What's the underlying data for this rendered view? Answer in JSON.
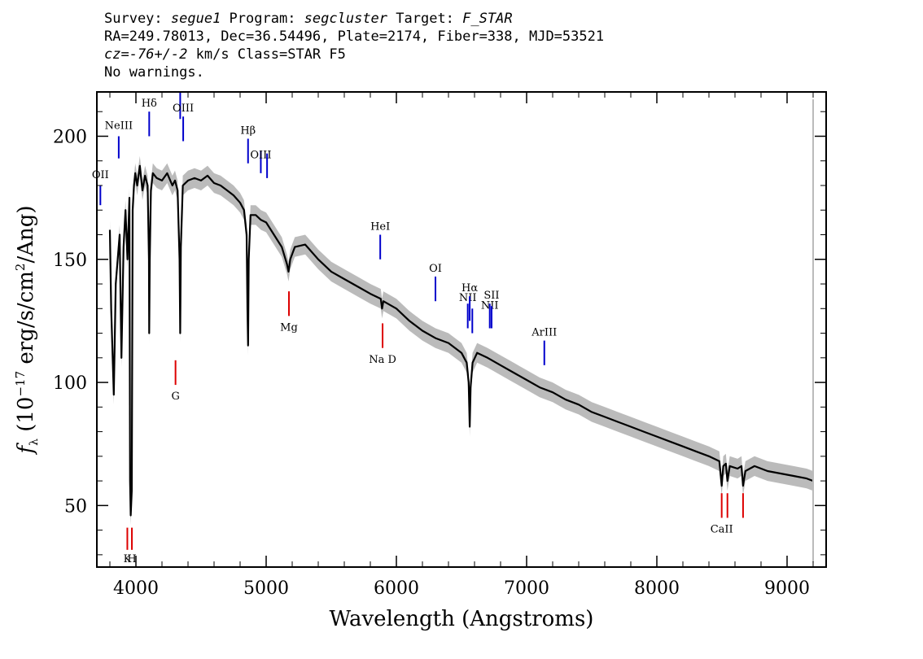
{
  "header": {
    "line1": {
      "survey_label": "Survey: ",
      "survey": "segue1",
      "program_label": " Program: ",
      "program": "segcluster",
      "target_label": " Target: ",
      "target": "F_STAR"
    },
    "line2": "RA=249.78013, Dec=36.54496, Plate=2174, Fiber=338, MJD=53521",
    "line3": {
      "cz": "cz",
      "eq": "=",
      "velocity": "-76+/-2",
      "rest": " km/s Class=STAR F5"
    },
    "line4": "No warnings."
  },
  "chart_data": {
    "type": "line",
    "xlabel": "Wavelength (Angstroms)",
    "ylabel": "f_λ (10^-17 erg/s/cm^2/Ang)",
    "ylabel_parts": {
      "f": "f",
      "lambda": "λ",
      "units_pre": " (10",
      "exp1": "−17",
      "units_mid": " erg/s/cm",
      "exp2": "2",
      "units_post": "/Ang)"
    },
    "xlim": [
      3700,
      9300
    ],
    "ylim": [
      25,
      218
    ],
    "x_ticks": [
      4000,
      5000,
      6000,
      7000,
      8000,
      9000
    ],
    "y_ticks": [
      50,
      100,
      150,
      200
    ],
    "series": [
      {
        "color": "#000000",
        "error_color": "#bbbbbb",
        "x": [
          3800,
          3810,
          3830,
          3845,
          3860,
          3875,
          3889,
          3905,
          3920,
          3935,
          3950,
          3955,
          3960,
          3968,
          3975,
          3985,
          3995,
          4010,
          4030,
          4050,
          4070,
          4090,
          4100,
          4102,
          4106,
          4115,
          4130,
          4160,
          4200,
          4240,
          4280,
          4300,
          4320,
          4335,
          4340,
          4345,
          4360,
          4400,
          4450,
          4500,
          4550,
          4600,
          4650,
          4700,
          4750,
          4800,
          4830,
          4850,
          4856,
          4861,
          4866,
          4880,
          4920,
          4960,
          5000,
          5060,
          5120,
          5160,
          5172,
          5185,
          5220,
          5300,
          5400,
          5500,
          5600,
          5700,
          5800,
          5880,
          5890,
          5900,
          6000,
          6100,
          6200,
          6300,
          6400,
          6500,
          6540,
          6555,
          6563,
          6570,
          6585,
          6620,
          6700,
          6800,
          6900,
          7000,
          7100,
          7200,
          7300,
          7400,
          7500,
          7600,
          7700,
          7800,
          7900,
          8000,
          8100,
          8200,
          8300,
          8400,
          8480,
          8498,
          8510,
          8530,
          8542,
          8560,
          8620,
          8650,
          8662,
          8680,
          8750,
          8850,
          8950,
          9050,
          9150,
          9200
        ],
        "y": [
          162,
          130,
          95,
          140,
          150,
          160,
          110,
          155,
          170,
          150,
          175,
          60,
          46,
          56,
          170,
          180,
          185,
          180,
          188,
          178,
          184,
          180,
          150,
          120,
          150,
          178,
          185,
          183,
          182,
          185,
          180,
          182,
          178,
          150,
          120,
          155,
          180,
          182,
          183,
          182,
          184,
          181,
          180,
          178,
          176,
          173,
          170,
          160,
          130,
          115,
          150,
          168,
          168,
          166,
          165,
          160,
          155,
          148,
          145,
          150,
          155,
          156,
          150,
          145,
          142,
          139,
          136,
          134,
          130,
          133,
          130,
          125,
          121,
          118,
          116,
          112,
          108,
          100,
          82,
          98,
          108,
          112,
          110,
          107,
          104,
          101,
          98,
          96,
          93,
          91,
          88,
          86,
          84,
          82,
          80,
          78,
          76,
          74,
          72,
          70,
          68,
          58,
          66,
          67,
          60,
          66,
          65,
          66,
          58,
          64,
          66,
          64,
          63,
          62,
          61,
          60
        ]
      }
    ],
    "lines": [
      {
        "label": "OII",
        "x": 3727,
        "y_lo": 172,
        "y_hi": 180,
        "color": "blue",
        "label_y": 183
      },
      {
        "label": "NeIII",
        "x": 3868,
        "y_lo": 191,
        "y_hi": 200,
        "color": "blue",
        "label_y": 203
      },
      {
        "label": "Hδ",
        "x": 4102,
        "y_lo": 200,
        "y_hi": 210,
        "color": "blue",
        "label_y": 212
      },
      {
        "label": "",
        "x": 4340,
        "y_lo": 207,
        "y_hi": 218,
        "color": "blue",
        "label_y": 0
      },
      {
        "label": "OIII",
        "x": 4363,
        "y_lo": 198,
        "y_hi": 208,
        "color": "blue",
        "label_y": 210
      },
      {
        "label": "Hβ",
        "x": 4861,
        "y_lo": 189,
        "y_hi": 199,
        "color": "blue",
        "label_y": 201
      },
      {
        "label": "OIII",
        "x": 4959,
        "y_lo": 185,
        "y_hi": 194,
        "color": "blue",
        "label_y": 191
      },
      {
        "label": "",
        "x": 5007,
        "y_lo": 183,
        "y_hi": 193,
        "color": "blue",
        "label_y": 0
      },
      {
        "label": "HeI",
        "x": 5876,
        "y_lo": 150,
        "y_hi": 160,
        "color": "blue",
        "label_y": 162
      },
      {
        "label": "OI",
        "x": 6300,
        "y_lo": 133,
        "y_hi": 143,
        "color": "blue",
        "label_y": 145
      },
      {
        "label": "NII",
        "x": 6548,
        "y_lo": 122,
        "y_hi": 132,
        "color": "blue",
        "label_y": 133
      },
      {
        "label": "Hα",
        "x": 6563,
        "y_lo": 125,
        "y_hi": 135,
        "color": "blue",
        "label_y": 137
      },
      {
        "label": "",
        "x": 6583,
        "y_lo": 120,
        "y_hi": 130,
        "color": "blue",
        "label_y": 0
      },
      {
        "label": "NII",
        "x": 6717,
        "y_lo": 122,
        "y_hi": 132,
        "color": "blue",
        "label_y": 130
      },
      {
        "label": "SII",
        "x": 6731,
        "y_lo": 122,
        "y_hi": 131,
        "color": "blue",
        "label_y": 134
      },
      {
        "label": "ArIII",
        "x": 7136,
        "y_lo": 107,
        "y_hi": 117,
        "color": "blue",
        "label_y": 119
      },
      {
        "label": "K",
        "x": 3934,
        "y_lo": 32,
        "y_hi": 41,
        "color": "red",
        "label_y": 27
      },
      {
        "label": "H",
        "x": 3969,
        "y_lo": 32,
        "y_hi": 41,
        "color": "red",
        "label_y": 27
      },
      {
        "label": "G",
        "x": 4304,
        "y_lo": 99,
        "y_hi": 109,
        "color": "red",
        "label_y": 93
      },
      {
        "label": "Mg",
        "x": 5175,
        "y_lo": 127,
        "y_hi": 137,
        "color": "red",
        "label_y": 121
      },
      {
        "label": "Na D",
        "x": 5894,
        "y_lo": 114,
        "y_hi": 124,
        "color": "red",
        "label_y": 108
      },
      {
        "label": "CaII",
        "x": 8498,
        "y_lo": 45,
        "y_hi": 55,
        "color": "red",
        "label_y": 39
      },
      {
        "label": "",
        "x": 8542,
        "y_lo": 45,
        "y_hi": 55,
        "color": "red",
        "label_y": 0
      },
      {
        "label": "",
        "x": 8662,
        "y_lo": 45,
        "y_hi": 55,
        "color": "red",
        "label_y": 0
      }
    ]
  }
}
